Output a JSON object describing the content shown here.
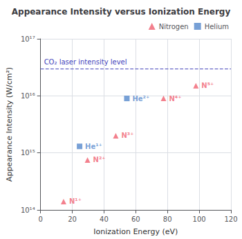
{
  "chart_data": {
    "type": "scatter",
    "title": "Appearance Intensity versus Ionization Energy",
    "x_label": "Ionization Energy (eV)",
    "y_label": "Appearance Intensity (W/cm²)",
    "xlim": [
      0,
      120
    ],
    "xticks": [
      0,
      20,
      40,
      60,
      80,
      100,
      120
    ],
    "ylim": [
      100000000000000.0,
      1e+17
    ],
    "yticks": [
      {
        "value": 100000000000000.0,
        "label": "10¹⁴"
      },
      {
        "value": 1000000000000000.0,
        "label": "10¹⁵"
      },
      {
        "value": 1e+16,
        "label": "10¹⁶"
      },
      {
        "value": 1e+17,
        "label": "10¹⁷"
      }
    ],
    "log": "y",
    "grid": true,
    "legend": "upper right",
    "series": [
      {
        "name": "Nitrogen",
        "color": "#f06070",
        "marker": "triangle",
        "x": [
          14.5,
          29.6,
          47.4,
          77.5,
          97.9
        ],
        "values": [
          140000000000000.0,
          750000000000000.0,
          2000000000000000.0,
          9000000000000000.0,
          1.5e+16
        ],
        "labels": [
          "N¹⁺",
          "N²⁺",
          "N³⁺",
          "N⁴⁺",
          "N⁵⁺"
        ]
      },
      {
        "name": "Helium",
        "color": "#5588cc",
        "marker": "square",
        "x": [
          24.6,
          54.4
        ],
        "values": [
          1300000000000000.0,
          9000000000000000.0
        ],
        "labels": [
          "He¹⁺",
          "He²⁺"
        ]
      }
    ],
    "hlines": [
      {
        "y": 3e+16,
        "text": "CO₂ laser intensity level",
        "color": "#4444bb",
        "line_style": "dashed"
      }
    ]
  }
}
